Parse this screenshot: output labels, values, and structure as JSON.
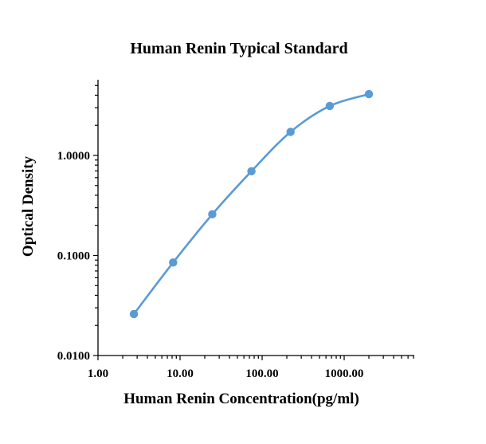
{
  "chart_data": {
    "type": "scatter",
    "title": "Human Renin Typical Standard",
    "xlabel": "Human Renin Concentration(pg/ml)",
    "ylabel": "Optical Density",
    "x_scale": "log",
    "y_scale": "log",
    "xlim": [
      1,
      8000
    ],
    "ylim": [
      0.01,
      10
    ],
    "x_tick_values": [
      1,
      10,
      100,
      1000
    ],
    "x_tick_labels": [
      "1.00",
      "10.00",
      "100.00",
      "1000.00"
    ],
    "y_tick_values": [
      0.01,
      0.1,
      1
    ],
    "y_tick_labels": [
      "0.0100",
      "0.1000",
      "1.0000"
    ],
    "grid": false,
    "legend": "none",
    "color": "#5b9bd5",
    "series": [
      {
        "x": [
          2.74,
          8.23,
          24.7,
          74.1,
          222,
          667,
          2000
        ],
        "y": [
          0.026,
          0.085,
          0.258,
          0.695,
          1.72,
          3.12,
          4.1
        ]
      }
    ]
  }
}
